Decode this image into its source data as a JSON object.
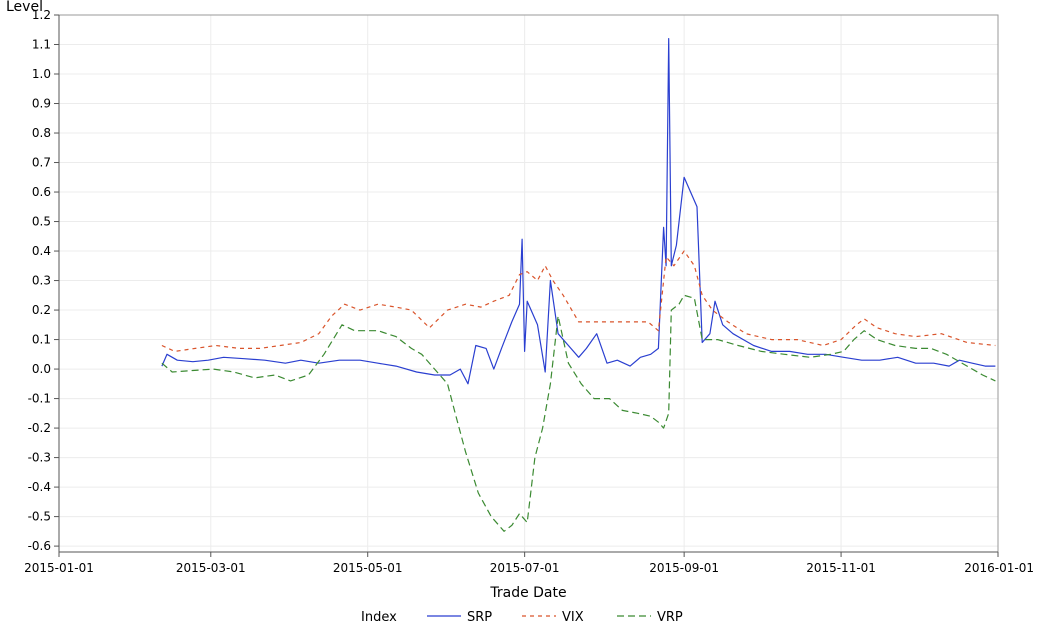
{
  "chart_data": {
    "type": "line",
    "title": "",
    "xlabel": "Trade Date",
    "ylabel": "Level",
    "xlim": [
      "2015-01-01",
      "2016-01-01"
    ],
    "ylim": [
      -0.62,
      1.2
    ],
    "grid": true,
    "legend": {
      "title": "Index",
      "placement": "bottom"
    },
    "xticks": [
      "2015-01-01",
      "2015-03-01",
      "2015-05-01",
      "2015-07-01",
      "2015-09-01",
      "2015-11-01",
      "2016-01-01"
    ],
    "yticks": [
      "-0.6",
      "-0.5",
      "-0.4",
      "-0.3",
      "-0.2",
      "-0.1",
      "0.0",
      "0.1",
      "0.2",
      "0.3",
      "0.4",
      "0.5",
      "0.6",
      "0.7",
      "0.8",
      "0.9",
      "1.0",
      "1.1",
      "1.2"
    ],
    "series": [
      {
        "name": "SRP",
        "color": "#2a3fd0",
        "dash": "solid",
        "points": [
          [
            "2015-02-10",
            0.01
          ],
          [
            "2015-02-12",
            0.05
          ],
          [
            "2015-02-16",
            0.03
          ],
          [
            "2015-02-22",
            0.025
          ],
          [
            "2015-02-28",
            0.03
          ],
          [
            "2015-03-06",
            0.04
          ],
          [
            "2015-03-14",
            0.035
          ],
          [
            "2015-03-22",
            0.03
          ],
          [
            "2015-03-30",
            0.02
          ],
          [
            "2015-04-05",
            0.03
          ],
          [
            "2015-04-12",
            0.02
          ],
          [
            "2015-04-20",
            0.03
          ],
          [
            "2015-04-28",
            0.03
          ],
          [
            "2015-05-05",
            0.02
          ],
          [
            "2015-05-12",
            0.01
          ],
          [
            "2015-05-20",
            -0.01
          ],
          [
            "2015-05-27",
            -0.02
          ],
          [
            "2015-06-02",
            -0.02
          ],
          [
            "2015-06-06",
            0.0
          ],
          [
            "2015-06-09",
            -0.05
          ],
          [
            "2015-06-12",
            0.08
          ],
          [
            "2015-06-16",
            0.07
          ],
          [
            "2015-06-19",
            0.0
          ],
          [
            "2015-06-22",
            0.07
          ],
          [
            "2015-06-26",
            0.16
          ],
          [
            "2015-06-29",
            0.22
          ],
          [
            "2015-06-30",
            0.44
          ],
          [
            "2015-07-01",
            0.06
          ],
          [
            "2015-07-02",
            0.23
          ],
          [
            "2015-07-06",
            0.15
          ],
          [
            "2015-07-09",
            -0.01
          ],
          [
            "2015-07-11",
            0.3
          ],
          [
            "2015-07-14",
            0.12
          ],
          [
            "2015-07-18",
            0.08
          ],
          [
            "2015-07-22",
            0.04
          ],
          [
            "2015-07-25",
            0.07
          ],
          [
            "2015-07-29",
            0.12
          ],
          [
            "2015-08-02",
            0.02
          ],
          [
            "2015-08-06",
            0.03
          ],
          [
            "2015-08-11",
            0.01
          ],
          [
            "2015-08-15",
            0.04
          ],
          [
            "2015-08-19",
            0.05
          ],
          [
            "2015-08-22",
            0.07
          ],
          [
            "2015-08-24",
            0.48
          ],
          [
            "2015-08-25",
            0.35
          ],
          [
            "2015-08-26",
            1.12
          ],
          [
            "2015-08-27",
            0.35
          ],
          [
            "2015-08-29",
            0.42
          ],
          [
            "2015-09-01",
            0.65
          ],
          [
            "2015-09-06",
            0.55
          ],
          [
            "2015-09-08",
            0.09
          ],
          [
            "2015-09-11",
            0.12
          ],
          [
            "2015-09-13",
            0.23
          ],
          [
            "2015-09-16",
            0.15
          ],
          [
            "2015-09-20",
            0.12
          ],
          [
            "2015-09-24",
            0.1
          ],
          [
            "2015-09-28",
            0.08
          ],
          [
            "2015-10-05",
            0.06
          ],
          [
            "2015-10-12",
            0.06
          ],
          [
            "2015-10-19",
            0.05
          ],
          [
            "2015-10-26",
            0.05
          ],
          [
            "2015-11-02",
            0.04
          ],
          [
            "2015-11-09",
            0.03
          ],
          [
            "2015-11-16",
            0.03
          ],
          [
            "2015-11-23",
            0.04
          ],
          [
            "2015-11-30",
            0.02
          ],
          [
            "2015-12-07",
            0.02
          ],
          [
            "2015-12-13",
            0.01
          ],
          [
            "2015-12-17",
            0.03
          ],
          [
            "2015-12-22",
            0.02
          ],
          [
            "2015-12-27",
            0.01
          ],
          [
            "2015-12-31",
            0.01
          ]
        ]
      },
      {
        "name": "VIX",
        "color": "#d9542b",
        "dash": "4,4",
        "points": [
          [
            "2015-02-10",
            0.08
          ],
          [
            "2015-02-15",
            0.06
          ],
          [
            "2015-02-23",
            0.07
          ],
          [
            "2015-03-03",
            0.08
          ],
          [
            "2015-03-12",
            0.07
          ],
          [
            "2015-03-20",
            0.07
          ],
          [
            "2015-03-28",
            0.08
          ],
          [
            "2015-04-05",
            0.09
          ],
          [
            "2015-04-12",
            0.12
          ],
          [
            "2015-04-17",
            0.18
          ],
          [
            "2015-04-22",
            0.22
          ],
          [
            "2015-04-28",
            0.2
          ],
          [
            "2015-05-05",
            0.22
          ],
          [
            "2015-05-12",
            0.21
          ],
          [
            "2015-05-18",
            0.2
          ],
          [
            "2015-05-25",
            0.14
          ],
          [
            "2015-06-01",
            0.2
          ],
          [
            "2015-06-08",
            0.22
          ],
          [
            "2015-06-14",
            0.21
          ],
          [
            "2015-06-19",
            0.23
          ],
          [
            "2015-06-25",
            0.25
          ],
          [
            "2015-06-29",
            0.32
          ],
          [
            "2015-07-02",
            0.33
          ],
          [
            "2015-07-06",
            0.3
          ],
          [
            "2015-07-09",
            0.35
          ],
          [
            "2015-07-12",
            0.3
          ],
          [
            "2015-07-16",
            0.25
          ],
          [
            "2015-07-22",
            0.16
          ],
          [
            "2015-07-28",
            0.16
          ],
          [
            "2015-08-05",
            0.16
          ],
          [
            "2015-08-12",
            0.16
          ],
          [
            "2015-08-18",
            0.16
          ],
          [
            "2015-08-22",
            0.13
          ],
          [
            "2015-08-25",
            0.38
          ],
          [
            "2015-08-28",
            0.35
          ],
          [
            "2015-09-01",
            0.4
          ],
          [
            "2015-09-05",
            0.35
          ],
          [
            "2015-09-08",
            0.25
          ],
          [
            "2015-09-12",
            0.2
          ],
          [
            "2015-09-18",
            0.16
          ],
          [
            "2015-09-25",
            0.12
          ],
          [
            "2015-10-05",
            0.1
          ],
          [
            "2015-10-15",
            0.1
          ],
          [
            "2015-10-25",
            0.08
          ],
          [
            "2015-11-01",
            0.1
          ],
          [
            "2015-11-07",
            0.15
          ],
          [
            "2015-11-10",
            0.17
          ],
          [
            "2015-11-15",
            0.14
          ],
          [
            "2015-11-22",
            0.12
          ],
          [
            "2015-11-30",
            0.11
          ],
          [
            "2015-12-10",
            0.12
          ],
          [
            "2015-12-20",
            0.09
          ],
          [
            "2015-12-31",
            0.08
          ]
        ]
      },
      {
        "name": "VRP",
        "color": "#3b8a32",
        "dash": "7,4",
        "points": [
          [
            "2015-02-10",
            0.02
          ],
          [
            "2015-02-14",
            -0.01
          ],
          [
            "2015-02-22",
            -0.005
          ],
          [
            "2015-03-02",
            0.0
          ],
          [
            "2015-03-10",
            -0.01
          ],
          [
            "2015-03-18",
            -0.03
          ],
          [
            "2015-03-26",
            -0.02
          ],
          [
            "2015-04-01",
            -0.04
          ],
          [
            "2015-04-08",
            -0.02
          ],
          [
            "2015-04-14",
            0.05
          ],
          [
            "2015-04-21",
            0.15
          ],
          [
            "2015-04-26",
            0.13
          ],
          [
            "2015-05-05",
            0.13
          ],
          [
            "2015-05-12",
            0.11
          ],
          [
            "2015-05-18",
            0.07
          ],
          [
            "2015-05-22",
            0.05
          ],
          [
            "2015-05-27",
            0.0
          ],
          [
            "2015-06-01",
            -0.05
          ],
          [
            "2015-06-04",
            -0.15
          ],
          [
            "2015-06-08",
            -0.28
          ],
          [
            "2015-06-13",
            -0.42
          ],
          [
            "2015-06-18",
            -0.5
          ],
          [
            "2015-06-23",
            -0.55
          ],
          [
            "2015-06-26",
            -0.53
          ],
          [
            "2015-06-29",
            -0.49
          ],
          [
            "2015-07-02",
            -0.52
          ],
          [
            "2015-07-05",
            -0.3
          ],
          [
            "2015-07-08",
            -0.2
          ],
          [
            "2015-07-11",
            -0.05
          ],
          [
            "2015-07-14",
            0.18
          ],
          [
            "2015-07-18",
            0.02
          ],
          [
            "2015-07-23",
            -0.05
          ],
          [
            "2015-07-28",
            -0.1
          ],
          [
            "2015-08-03",
            -0.1
          ],
          [
            "2015-08-08",
            -0.14
          ],
          [
            "2015-08-14",
            -0.15
          ],
          [
            "2015-08-19",
            -0.16
          ],
          [
            "2015-08-22",
            -0.18
          ],
          [
            "2015-08-24",
            -0.2
          ],
          [
            "2015-08-26",
            -0.15
          ],
          [
            "2015-08-27",
            0.2
          ],
          [
            "2015-08-30",
            0.22
          ],
          [
            "2015-09-01",
            0.25
          ],
          [
            "2015-09-05",
            0.24
          ],
          [
            "2015-09-08",
            0.1
          ],
          [
            "2015-09-14",
            0.1
          ],
          [
            "2015-09-22",
            0.08
          ],
          [
            "2015-10-01",
            0.06
          ],
          [
            "2015-10-10",
            0.05
          ],
          [
            "2015-10-20",
            0.04
          ],
          [
            "2015-10-28",
            0.05
          ],
          [
            "2015-11-02",
            0.06
          ],
          [
            "2015-11-06",
            0.1
          ],
          [
            "2015-11-10",
            0.13
          ],
          [
            "2015-11-15",
            0.1
          ],
          [
            "2015-11-22",
            0.08
          ],
          [
            "2015-11-30",
            0.07
          ],
          [
            "2015-12-06",
            0.07
          ],
          [
            "2015-12-12",
            0.05
          ],
          [
            "2015-12-20",
            0.01
          ],
          [
            "2015-12-26",
            -0.02
          ],
          [
            "2015-12-31",
            -0.04
          ]
        ]
      }
    ]
  }
}
